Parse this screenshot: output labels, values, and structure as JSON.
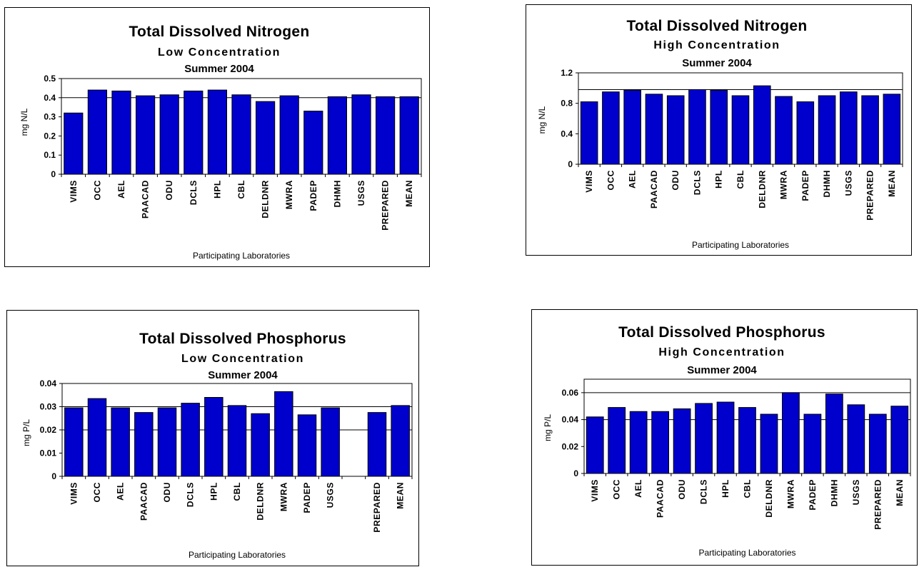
{
  "chart_data": [
    {
      "type": "bar",
      "title": "Total Dissolved Nitrogen",
      "subtitle": "Low Concentration",
      "season": "Summer 2004",
      "xlabel": "Participating Laboratories",
      "ylabel": "mg N/L",
      "ylim": [
        0,
        0.5
      ],
      "yticks": [
        "0",
        "0.1",
        "0.2",
        "0.3",
        "0.4",
        "0.5"
      ],
      "categories": [
        "VIMS",
        "OCC",
        "AEL",
        "PAACAD",
        "ODU",
        "DCLS",
        "HPL",
        "CBL",
        "DELDNR",
        "MWRA",
        "PADEP",
        "DHMH",
        "USGS",
        "PREPARED",
        "MEAN"
      ],
      "values": [
        0.32,
        0.44,
        0.435,
        0.41,
        0.415,
        0.435,
        0.44,
        0.415,
        0.38,
        0.41,
        0.33,
        0.405,
        0.415,
        0.405,
        0.405
      ],
      "reference_lines": [
        0.4
      ],
      "bar_color": "#0000cc",
      "grid": false
    },
    {
      "type": "bar",
      "title": "Total Dissolved Nitrogen",
      "subtitle": "High Concentration",
      "season": "Summer 2004",
      "xlabel": "Participating Laboratories",
      "ylabel": "mg N/L",
      "ylim": [
        0,
        1.2
      ],
      "yticks": [
        "0",
        "0.4",
        "0.8",
        "1.2"
      ],
      "categories": [
        "VIMS",
        "OCC",
        "AEL",
        "PAACAD",
        "ODU",
        "DCLS",
        "HPL",
        "CBL",
        "DELDNR",
        "MWRA",
        "PADEP",
        "DHMH",
        "USGS",
        "PREPARED",
        "MEAN"
      ],
      "values": [
        0.82,
        0.95,
        0.97,
        0.92,
        0.9,
        0.98,
        0.97,
        0.9,
        1.03,
        0.89,
        0.82,
        0.9,
        0.95,
        0.9,
        0.92
      ],
      "reference_lines": [
        0.98
      ],
      "bar_color": "#0000cc",
      "grid": false
    },
    {
      "type": "bar",
      "title": "Total Dissolved Phosphorus",
      "subtitle": "Low Concentration",
      "season": "Summer 2004",
      "xlabel": "Participating Laboratories",
      "ylabel": "mg P/L",
      "ylim": [
        0,
        0.04
      ],
      "yticks": [
        "0",
        "0.01",
        "0.02",
        "0.03",
        "0.04"
      ],
      "categories": [
        "VIMS",
        "OCC",
        "AEL",
        "PAACAD",
        "ODU",
        "DCLS",
        "HPL",
        "CBL",
        "DELDNR",
        "MWRA",
        "PADEP",
        "USGS",
        "",
        "PREPARED",
        "MEAN"
      ],
      "values": [
        0.0295,
        0.0335,
        0.0295,
        0.0275,
        0.0295,
        0.0315,
        0.034,
        0.0305,
        0.027,
        0.0365,
        0.0265,
        0.0295,
        null,
        0.0275,
        0.0305
      ],
      "reference_lines": [
        0.03,
        0.02
      ],
      "bar_color": "#0000cc",
      "grid": false
    },
    {
      "type": "bar",
      "title": "Total Dissolved Phosphorus",
      "subtitle": "High Concentration",
      "season": "Summer  2004",
      "xlabel": "Participating Laboratories",
      "ylabel": "mg P/L",
      "ylim": [
        0,
        0.07
      ],
      "yticks": [
        "0",
        "0.02",
        "0.04",
        "0.06"
      ],
      "categories": [
        "VIMS",
        "OCC",
        "AEL",
        "PAACAD",
        "ODU",
        "DCLS",
        "HPL",
        "CBL",
        "DELDNR",
        "MWRA",
        "PADEP",
        "DHMH",
        "USGS",
        "PREPARED",
        "MEAN"
      ],
      "values": [
        0.042,
        0.049,
        0.046,
        0.046,
        0.048,
        0.052,
        0.053,
        0.049,
        0.044,
        0.06,
        0.044,
        0.059,
        0.051,
        0.044,
        0.05
      ],
      "reference_lines": [
        0.06,
        0.04
      ],
      "bar_color": "#0000cc",
      "grid": false
    }
  ]
}
